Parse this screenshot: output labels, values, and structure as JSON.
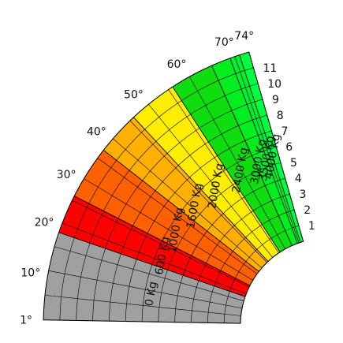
{
  "chart_data": {
    "type": "polar_load_chart",
    "angle_range_deg": [
      1,
      74
    ],
    "angle_labels": [
      {
        "deg": 1,
        "text": "1°"
      },
      {
        "deg": 10,
        "text": "10°"
      },
      {
        "deg": 20,
        "text": "20°"
      },
      {
        "deg": 30,
        "text": "30°"
      },
      {
        "deg": 40,
        "text": "40°"
      },
      {
        "deg": 50,
        "text": "50°"
      },
      {
        "deg": 60,
        "text": "60°"
      },
      {
        "deg": 70,
        "text": "70°"
      },
      {
        "deg": 74,
        "text": "74°"
      }
    ],
    "radius_labels": [
      "1",
      "2",
      "3",
      "4",
      "5",
      "6",
      "7",
      "8",
      "9",
      "10",
      "11"
    ],
    "zones": [
      {
        "label": "0 Kg",
        "color": "#a0a0a0",
        "angle_end_deg": 19
      },
      {
        "label": "600 Kg",
        "color": "#ff0000",
        "angle_end_deg": 27
      },
      {
        "label": "1000 Kg",
        "color": "#ff6000",
        "angle_end_deg": 38
      },
      {
        "label": "1600 Kg",
        "color": "#ffb000",
        "angle_end_deg": 47
      },
      {
        "label": "2000 Kg",
        "color": "#ffee00",
        "angle_end_deg": 57
      },
      {
        "label": "2400 Kg",
        "color": "#10dd10",
        "angle_end_deg": 66
      },
      {
        "label": "3000 Kg",
        "color": "#00ee20",
        "angle_end_deg": 70
      },
      {
        "label": "3500 Kg",
        "color": "#00f030",
        "angle_end_deg": 72
      },
      {
        "label": "4000 Kg",
        "color": "#00ff40",
        "angle_end_deg": 74
      }
    ]
  }
}
